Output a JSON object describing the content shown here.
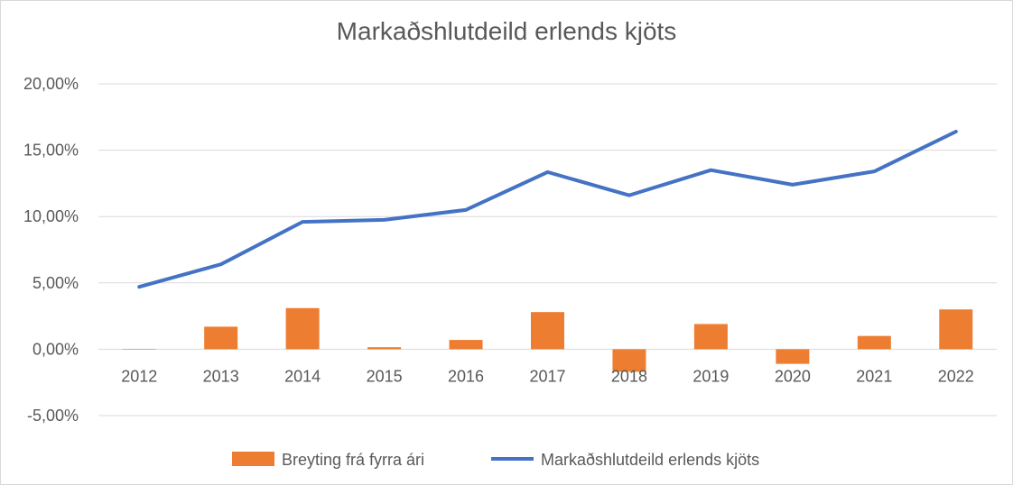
{
  "chart_data": {
    "type": "bar+line",
    "title": "Markaðshlutdeild erlends kjöts",
    "categories": [
      "2012",
      "2013",
      "2014",
      "2015",
      "2016",
      "2017",
      "2018",
      "2019",
      "2020",
      "2021",
      "2022"
    ],
    "y_ticks": [
      "-5,00%",
      "0,00%",
      "5,00%",
      "10,00%",
      "15,00%",
      "20,00%"
    ],
    "ylim": [
      -5,
      20
    ],
    "grid": true,
    "legend_position": "bottom",
    "series": [
      {
        "name": "Breyting frá fyrra ári",
        "kind": "bar",
        "color": "#ED7D31",
        "values": [
          0,
          1.7,
          3.1,
          0.15,
          0.7,
          2.8,
          -1.7,
          1.9,
          -1.1,
          1.0,
          3.0
        ]
      },
      {
        "name": "Markaðshlutdeild erlends kjöts",
        "kind": "line",
        "color": "#4472C4",
        "values": [
          4.7,
          6.4,
          9.6,
          9.75,
          10.5,
          13.35,
          11.6,
          13.5,
          12.4,
          13.4,
          16.4
        ]
      }
    ]
  }
}
